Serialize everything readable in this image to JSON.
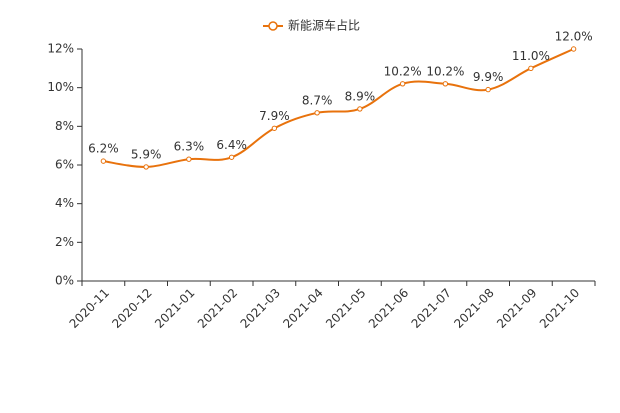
{
  "chart_data": {
    "type": "line",
    "categories": [
      "2020-11",
      "2020-12",
      "2021-01",
      "2021-02",
      "2021-03",
      "2021-04",
      "2021-05",
      "2021-06",
      "2021-07",
      "2021-08",
      "2021-09",
      "2021-10"
    ],
    "series": [
      {
        "name": "新能源车占比",
        "color": "#e8720c",
        "values": [
          6.2,
          5.9,
          6.3,
          6.4,
          7.9,
          8.7,
          8.9,
          10.2,
          10.2,
          9.9,
          11.0,
          12.0
        ],
        "value_labels": [
          "6.2%",
          "5.9%",
          "6.3%",
          "6.4%",
          "7.9%",
          "8.7%",
          "8.9%",
          "10.2%",
          "10.2%",
          "9.9%",
          "11.0%",
          "12.0%"
        ]
      }
    ],
    "ylim": [
      0,
      12
    ],
    "yticks": [
      {
        "value": 0,
        "label": "0%"
      },
      {
        "value": 2,
        "label": "2%"
      },
      {
        "value": 4,
        "label": "4%"
      },
      {
        "value": 6,
        "label": "6%"
      },
      {
        "value": 8,
        "label": "8%"
      },
      {
        "value": 10,
        "label": "10%"
      },
      {
        "value": 12,
        "label": "12%"
      }
    ],
    "legend": "top"
  }
}
